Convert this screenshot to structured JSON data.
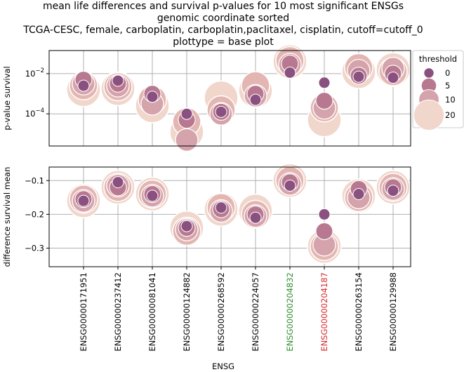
{
  "chart_data": {
    "type": "scatter",
    "title_lines": [
      "mean life differences and survival p-values for 10 most significant ENSGs",
      "genomic coordinate sorted",
      "TCGA-CESC, female, carboplatin, carboplatin,paclitaxel, cisplatin, cutoff=cutoff_0",
      "plottype = base plot"
    ],
    "xlabel": "ENSG",
    "categories": [
      {
        "label": "ENSG00000171951",
        "color": "#000000"
      },
      {
        "label": "ENSG00000237412",
        "color": "#000000"
      },
      {
        "label": "ENSG00000081041",
        "color": "#000000"
      },
      {
        "label": "ENSG00000124882",
        "color": "#000000"
      },
      {
        "label": "ENSG00000268592",
        "color": "#000000"
      },
      {
        "label": "ENSG00000224057",
        "color": "#000000"
      },
      {
        "label": "ENSG00000204832",
        "color": "#2e8b2e"
      },
      {
        "label": "ENSG00000204187",
        "color": "#d62728"
      },
      {
        "label": "ENSG00000263154",
        "color": "#000000"
      },
      {
        "label": "ENSG00000129988",
        "color": "#000000"
      }
    ],
    "legend": {
      "title": "threshold",
      "entries": [
        {
          "label": "0",
          "threshold": 0
        },
        {
          "label": "5",
          "threshold": 5
        },
        {
          "label": "10",
          "threshold": 10
        },
        {
          "label": "20",
          "threshold": 20
        }
      ]
    },
    "top_panel": {
      "ylabel": "p-value survival",
      "yscale": "log",
      "ylim_log10": [
        -5.6,
        -0.85
      ],
      "yticks": [
        {
          "label": "10",
          "exp": "−2",
          "log10": -2
        },
        {
          "label": "10",
          "exp": "−4",
          "log10": -4
        }
      ],
      "series": [
        {
          "threshold": 20,
          "log10_values": [
            -2.8,
            -2.75,
            -3.6,
            -4.9,
            -3.2,
            -2.85,
            -1.4,
            -4.3,
            -1.9,
            -1.8
          ]
        },
        {
          "threshold": 15,
          "log10_values": [
            -2.6,
            -2.65,
            -3.3,
            -4.4,
            -3.8,
            -2.6,
            -1.35,
            -3.7,
            -1.7,
            -1.9
          ]
        },
        {
          "threshold": 10,
          "log10_values": [
            -2.5,
            -2.6,
            -3.5,
            -5.3,
            -4.0,
            -3.1,
            -1.55,
            -3.7,
            -1.85,
            -1.75
          ]
        },
        {
          "threshold": 5,
          "log10_values": [
            -2.3,
            -2.5,
            -3.0,
            -4.3,
            -3.9,
            -3.0,
            -1.5,
            -3.35,
            -2.1,
            -2.0
          ]
        },
        {
          "threshold": 0,
          "log10_values": [
            -2.6,
            -2.35,
            -3.15,
            -4.0,
            -3.9,
            -3.3,
            -1.95,
            -2.45,
            -2.15,
            -2.2
          ]
        }
      ]
    },
    "bottom_panel": {
      "ylabel": "difference survival mean",
      "ylim": [
        -0.355,
        -0.06
      ],
      "yticks": [
        -0.1,
        -0.2,
        -0.3
      ],
      "ytick_labels": [
        "−0.1",
        "−0.2",
        "−0.3"
      ],
      "series": [
        {
          "threshold": 20,
          "values": [
            -0.16,
            -0.12,
            -0.14,
            -0.24,
            -0.185,
            -0.19,
            -0.1,
            -0.295,
            -0.145,
            -0.12
          ]
        },
        {
          "threshold": 15,
          "values": [
            -0.155,
            -0.12,
            -0.14,
            -0.25,
            -0.18,
            -0.2,
            -0.1,
            -0.295,
            -0.15,
            -0.12
          ]
        },
        {
          "threshold": 10,
          "values": [
            -0.16,
            -0.115,
            -0.145,
            -0.245,
            -0.19,
            -0.205,
            -0.11,
            -0.29,
            -0.15,
            -0.125
          ]
        },
        {
          "threshold": 5,
          "values": [
            -0.155,
            -0.12,
            -0.14,
            -0.24,
            -0.185,
            -0.2,
            -0.105,
            -0.25,
            -0.125,
            -0.12
          ]
        },
        {
          "threshold": 0,
          "values": [
            -0.16,
            -0.105,
            -0.145,
            -0.235,
            -0.18,
            -0.21,
            -0.115,
            -0.2,
            -0.14,
            -0.13
          ]
        }
      ]
    }
  },
  "palette": {
    "20": "#f1d6cc",
    "15": "#e4b6b2",
    "10": "#d5a3ab",
    "5": "#b8788f",
    "0": "#895080"
  }
}
